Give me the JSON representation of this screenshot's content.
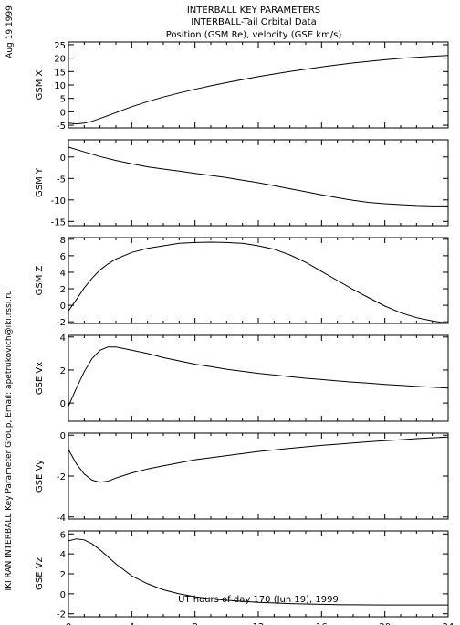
{
  "header": {
    "title": "INTERBALL KEY PARAMETERS",
    "subtitle": "INTERBALL-Tail Orbital Data",
    "units_line": "Position (GSM Re), velocity (GSE km/s)"
  },
  "side_labels": {
    "date_stamp": "Aug 19 1999",
    "credit": "IKI RAN INTERBALL Key Parameter Group, Email: apetrukovich@iki.rssi.ru"
  },
  "chart_data": {
    "type": "line",
    "xlabel": "UT hours of day 170 (Jun 19), 1999",
    "xlim": [
      0,
      24
    ],
    "xticks": [
      0,
      4,
      8,
      12,
      16,
      20,
      24
    ],
    "panels": [
      {
        "ylabel": "GSM X",
        "ylim": [
          -6,
          26
        ],
        "yticks": [
          -5,
          0,
          5,
          10,
          15,
          20,
          25
        ],
        "x": [
          0,
          0.5,
          1,
          1.5,
          2,
          3,
          4,
          5,
          6,
          7,
          8,
          9,
          10,
          11,
          12,
          13,
          14,
          15,
          16,
          17,
          18,
          19,
          20,
          21,
          22,
          23,
          24
        ],
        "y": [
          -4.2,
          -4.5,
          -4.2,
          -3.5,
          -2.5,
          -0.3,
          1.9,
          3.8,
          5.5,
          7.0,
          8.4,
          9.7,
          10.9,
          12.0,
          13.1,
          14.1,
          15.0,
          15.9,
          16.7,
          17.5,
          18.2,
          18.8,
          19.4,
          19.9,
          20.3,
          20.7,
          21.0
        ]
      },
      {
        "ylabel": "GSM Y",
        "ylim": [
          -16,
          4
        ],
        "yticks": [
          -15,
          -10,
          -5,
          0
        ],
        "x": [
          0,
          1,
          2,
          3,
          4,
          5,
          6,
          7,
          8,
          9,
          10,
          11,
          12,
          13,
          14,
          15,
          16,
          17,
          18,
          19,
          20,
          21,
          22,
          23,
          24
        ],
        "y": [
          2.3,
          1.2,
          0.1,
          -0.8,
          -1.6,
          -2.3,
          -2.8,
          -3.3,
          -3.8,
          -4.3,
          -4.8,
          -5.4,
          -6.0,
          -6.7,
          -7.4,
          -8.1,
          -8.8,
          -9.5,
          -10.1,
          -10.6,
          -10.9,
          -11.1,
          -11.3,
          -11.4,
          -11.4
        ]
      },
      {
        "ylabel": "GSM Z",
        "ylim": [
          -2.2,
          8.2
        ],
        "yticks": [
          -2,
          0,
          2,
          4,
          6,
          8
        ],
        "x": [
          0,
          0.5,
          1,
          1.5,
          2,
          2.5,
          3,
          4,
          5,
          6,
          7,
          8,
          9,
          10,
          11,
          12,
          13,
          14,
          15,
          16,
          17,
          18,
          19,
          20,
          21,
          22,
          23,
          24
        ],
        "y": [
          -0.7,
          0.7,
          2.1,
          3.3,
          4.3,
          5.0,
          5.6,
          6.4,
          6.9,
          7.2,
          7.5,
          7.6,
          7.65,
          7.6,
          7.5,
          7.2,
          6.8,
          6.1,
          5.2,
          4.1,
          3.0,
          1.9,
          0.9,
          -0.1,
          -0.9,
          -1.5,
          -1.9,
          -2.2
        ]
      },
      {
        "ylabel": "GSE Vx",
        "ylim": [
          -1.1,
          4.1
        ],
        "yticks": [
          0,
          2,
          4
        ],
        "x": [
          0,
          0.5,
          1,
          1.5,
          2,
          2.5,
          3,
          3.5,
          4,
          5,
          6,
          7,
          8,
          9,
          10,
          11,
          12,
          13,
          14,
          15,
          16,
          17,
          18,
          19,
          20,
          21,
          22,
          23,
          24
        ],
        "y": [
          -0.2,
          0.9,
          1.9,
          2.7,
          3.2,
          3.4,
          3.4,
          3.3,
          3.2,
          3.0,
          2.75,
          2.55,
          2.35,
          2.2,
          2.05,
          1.92,
          1.8,
          1.7,
          1.6,
          1.5,
          1.42,
          1.34,
          1.26,
          1.2,
          1.13,
          1.07,
          1.01,
          0.96,
          0.9
        ]
      },
      {
        "ylabel": "GSE Vy",
        "ylim": [
          -4.1,
          0.1
        ],
        "yticks": [
          -4,
          -2,
          0
        ],
        "x": [
          0,
          0.5,
          1,
          1.5,
          2,
          2.5,
          3,
          4,
          5,
          6,
          7,
          8,
          9,
          10,
          11,
          12,
          13,
          14,
          15,
          16,
          17,
          18,
          19,
          20,
          21,
          22,
          23,
          24
        ],
        "y": [
          -0.7,
          -1.4,
          -1.9,
          -2.2,
          -2.3,
          -2.25,
          -2.1,
          -1.85,
          -1.65,
          -1.5,
          -1.35,
          -1.2,
          -1.1,
          -1.0,
          -0.9,
          -0.8,
          -0.72,
          -0.64,
          -0.57,
          -0.5,
          -0.44,
          -0.38,
          -0.32,
          -0.27,
          -0.22,
          -0.17,
          -0.13,
          -0.09
        ]
      },
      {
        "ylabel": "GSE Vz",
        "ylim": [
          -2.3,
          6.3
        ],
        "yticks": [
          -2,
          0,
          2,
          4,
          6
        ],
        "x": [
          0,
          0.5,
          1,
          1.5,
          2,
          2.5,
          3,
          3.5,
          4,
          5,
          6,
          7,
          8,
          9,
          10,
          11,
          12,
          13,
          14,
          15,
          16,
          17,
          18,
          19,
          20,
          21,
          22,
          23,
          24
        ],
        "y": [
          5.3,
          5.5,
          5.4,
          5.0,
          4.4,
          3.7,
          3.0,
          2.4,
          1.8,
          1.0,
          0.4,
          0.0,
          -0.3,
          -0.5,
          -0.65,
          -0.75,
          -0.85,
          -0.92,
          -0.98,
          -1.02,
          -1.06,
          -1.09,
          -1.1,
          -1.11,
          -1.12,
          -1.12,
          -1.12,
          -1.12,
          -1.12
        ]
      }
    ]
  }
}
